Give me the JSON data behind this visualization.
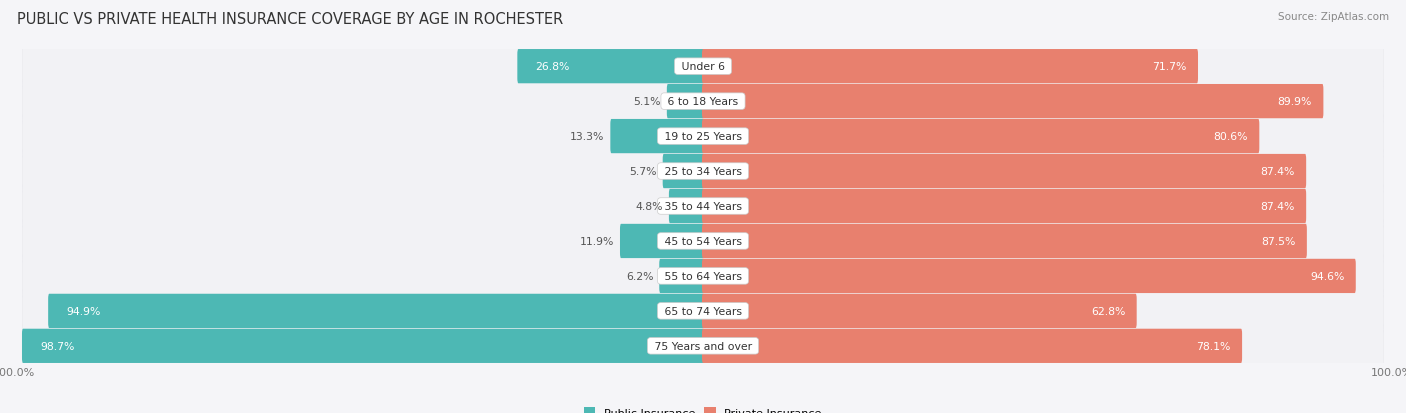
{
  "title": "PUBLIC VS PRIVATE HEALTH INSURANCE COVERAGE BY AGE IN ROCHESTER",
  "source": "Source: ZipAtlas.com",
  "categories": [
    "Under 6",
    "6 to 18 Years",
    "19 to 25 Years",
    "25 to 34 Years",
    "35 to 44 Years",
    "45 to 54 Years",
    "55 to 64 Years",
    "65 to 74 Years",
    "75 Years and over"
  ],
  "public_values": [
    26.8,
    5.1,
    13.3,
    5.7,
    4.8,
    11.9,
    6.2,
    94.9,
    98.7
  ],
  "private_values": [
    71.7,
    89.9,
    80.6,
    87.4,
    87.4,
    87.5,
    94.6,
    62.8,
    78.1
  ],
  "public_color": "#4db8b4",
  "private_color": "#e8806e",
  "private_color_light": "#f0b0a0",
  "row_bg_color": "#e8e8ec",
  "row_inner_color": "#f2f2f5",
  "max_value": 100.0,
  "title_fontsize": 10.5,
  "label_fontsize": 7.8,
  "tick_fontsize": 8,
  "source_fontsize": 7.5,
  "legend_fontsize": 8,
  "background_color": "#f5f5f8"
}
